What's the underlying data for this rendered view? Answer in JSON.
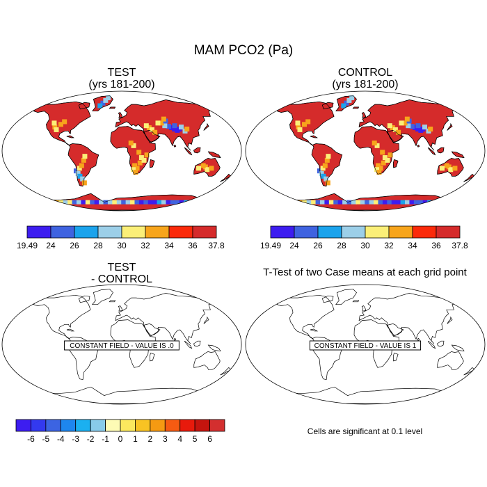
{
  "figure": {
    "title": "MAM PCO2 (Pa)"
  },
  "panels": {
    "test": {
      "title_line1": "TEST",
      "title_line2": "(yrs 181-200)"
    },
    "control": {
      "title_line1": "CONTROL",
      "title_line2": "(yrs 181-200)"
    },
    "diff": {
      "title_line1": "TEST",
      "title_line2": "- CONTROL",
      "field_label": "CONSTANT FIELD - VALUE IS .0"
    },
    "ttest": {
      "title": "T-Test of two Case means at each grid point",
      "field_label": "CONSTANT FIELD - VALUE IS 1",
      "note": "Cells are significant at 0.1 level"
    }
  },
  "colorbar_abs": {
    "colors": [
      "#3d1df0",
      "#3f63e0",
      "#1ba3ec",
      "#9ccfe8",
      "#fbef78",
      "#f7a51c",
      "#fb2a0a",
      "#d52b2b"
    ],
    "labels": [
      "19.49",
      "24",
      "26",
      "28",
      "30",
      "32",
      "34",
      "36",
      "37.8"
    ]
  },
  "colorbar_diff": {
    "colors": [
      "#3d1df0",
      "#3339ef",
      "#3c64e2",
      "#1e86ee",
      "#1bb0f0",
      "#88cbea",
      "#fdfbb5",
      "#fbe85e",
      "#f8c323",
      "#f59a12",
      "#f55b12",
      "#e81a0c",
      "#c5140e",
      "#d32f2f"
    ],
    "labels": [
      "-6",
      "-5",
      "-4",
      "-3",
      "-2",
      "-1",
      "0",
      "1",
      "2",
      "3",
      "4",
      "5",
      "6"
    ]
  },
  "map_colors": {
    "land": "#d52b2b",
    "red2": "#fb2a0a",
    "orange": "#f7a51c",
    "yellow": "#fbef78",
    "lightblue": "#9ccfe8",
    "blue": "#3f63e0",
    "violet": "#3d1df0",
    "cyan": "#1ba3ec"
  }
}
